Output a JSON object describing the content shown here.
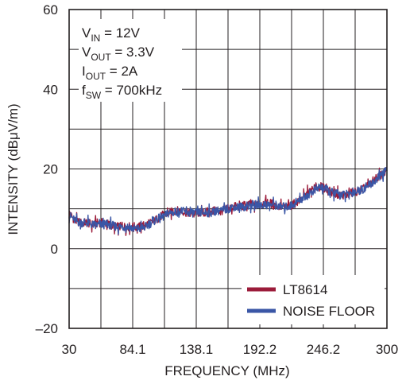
{
  "chart_data": {
    "type": "line",
    "title": "",
    "xlabel": "FREQUENCY (MHz)",
    "ylabel": "INTENSITY (dBμV/m)",
    "xlim": [
      30,
      300
    ],
    "ylim": [
      -20,
      60
    ],
    "x_ticks": [
      "30",
      "84.1",
      "138.1",
      "192.2",
      "246.2",
      "300"
    ],
    "y_ticks": [
      "60",
      "40",
      "20",
      "0",
      "–20"
    ],
    "y_tick_values": [
      60,
      40,
      20,
      0,
      -20
    ],
    "grid": true,
    "legend_position": "bottom-right",
    "annotations": [
      {
        "main": "V",
        "sub": "IN",
        "rest": " = 12V"
      },
      {
        "main": "V",
        "sub": "OUT",
        "rest": " = 3.3V"
      },
      {
        "main": "I",
        "sub": "OUT",
        "rest": " = 2A"
      },
      {
        "main": "f",
        "sub": "SW",
        "rest": " = 700kHz"
      }
    ],
    "series": [
      {
        "name": "LT8614",
        "color": "#9b1b3a",
        "x": [
          30,
          35,
          40,
          45,
          50,
          55,
          60,
          65,
          70,
          75,
          80,
          85,
          90,
          95,
          100,
          105,
          110,
          115,
          120,
          125,
          130,
          135,
          140,
          145,
          150,
          155,
          160,
          165,
          170,
          175,
          180,
          185,
          190,
          195,
          200,
          205,
          210,
          215,
          220,
          225,
          230,
          235,
          240,
          245,
          250,
          255,
          260,
          265,
          270,
          275,
          280,
          285,
          290,
          295,
          300
        ],
        "y": [
          9,
          7,
          6.5,
          6.5,
          6,
          6.5,
          6.5,
          6,
          5.5,
          5.5,
          5.5,
          5.5,
          5.5,
          6,
          6.5,
          7.5,
          8.5,
          9,
          9.5,
          9.5,
          9,
          9,
          9,
          9,
          9.5,
          9.5,
          9.5,
          10,
          10.5,
          10.5,
          11,
          11,
          11,
          11.5,
          11.5,
          11,
          10.5,
          10.5,
          11,
          12,
          13,
          14.5,
          15.5,
          15.5,
          14.5,
          14,
          13.5,
          13.5,
          14,
          14.5,
          15,
          16,
          17.5,
          18.5,
          19.5
        ]
      },
      {
        "name": "NOISE FLOOR",
        "color": "#3a56a6",
        "x": [
          30,
          35,
          40,
          45,
          50,
          55,
          60,
          65,
          70,
          75,
          80,
          85,
          90,
          95,
          100,
          105,
          110,
          115,
          120,
          125,
          130,
          135,
          140,
          145,
          150,
          155,
          160,
          165,
          170,
          175,
          180,
          185,
          190,
          195,
          200,
          205,
          210,
          215,
          220,
          225,
          230,
          235,
          240,
          245,
          250,
          255,
          260,
          265,
          270,
          275,
          280,
          285,
          290,
          295,
          300
        ],
        "y": [
          8.5,
          7,
          6.5,
          6.5,
          6,
          6,
          6,
          6,
          5.5,
          5.5,
          5.5,
          5,
          5,
          5.5,
          6.5,
          7.5,
          8,
          9,
          9,
          9.5,
          9,
          9,
          9,
          9,
          9,
          9.5,
          9.5,
          10,
          10.5,
          10.5,
          10.5,
          11,
          11,
          11,
          11,
          11,
          10.5,
          10.5,
          11,
          12,
          13,
          14,
          15,
          15.5,
          14.5,
          14,
          13.5,
          13.5,
          14,
          14.5,
          15,
          16,
          17,
          18.5,
          19.5
        ]
      }
    ]
  }
}
